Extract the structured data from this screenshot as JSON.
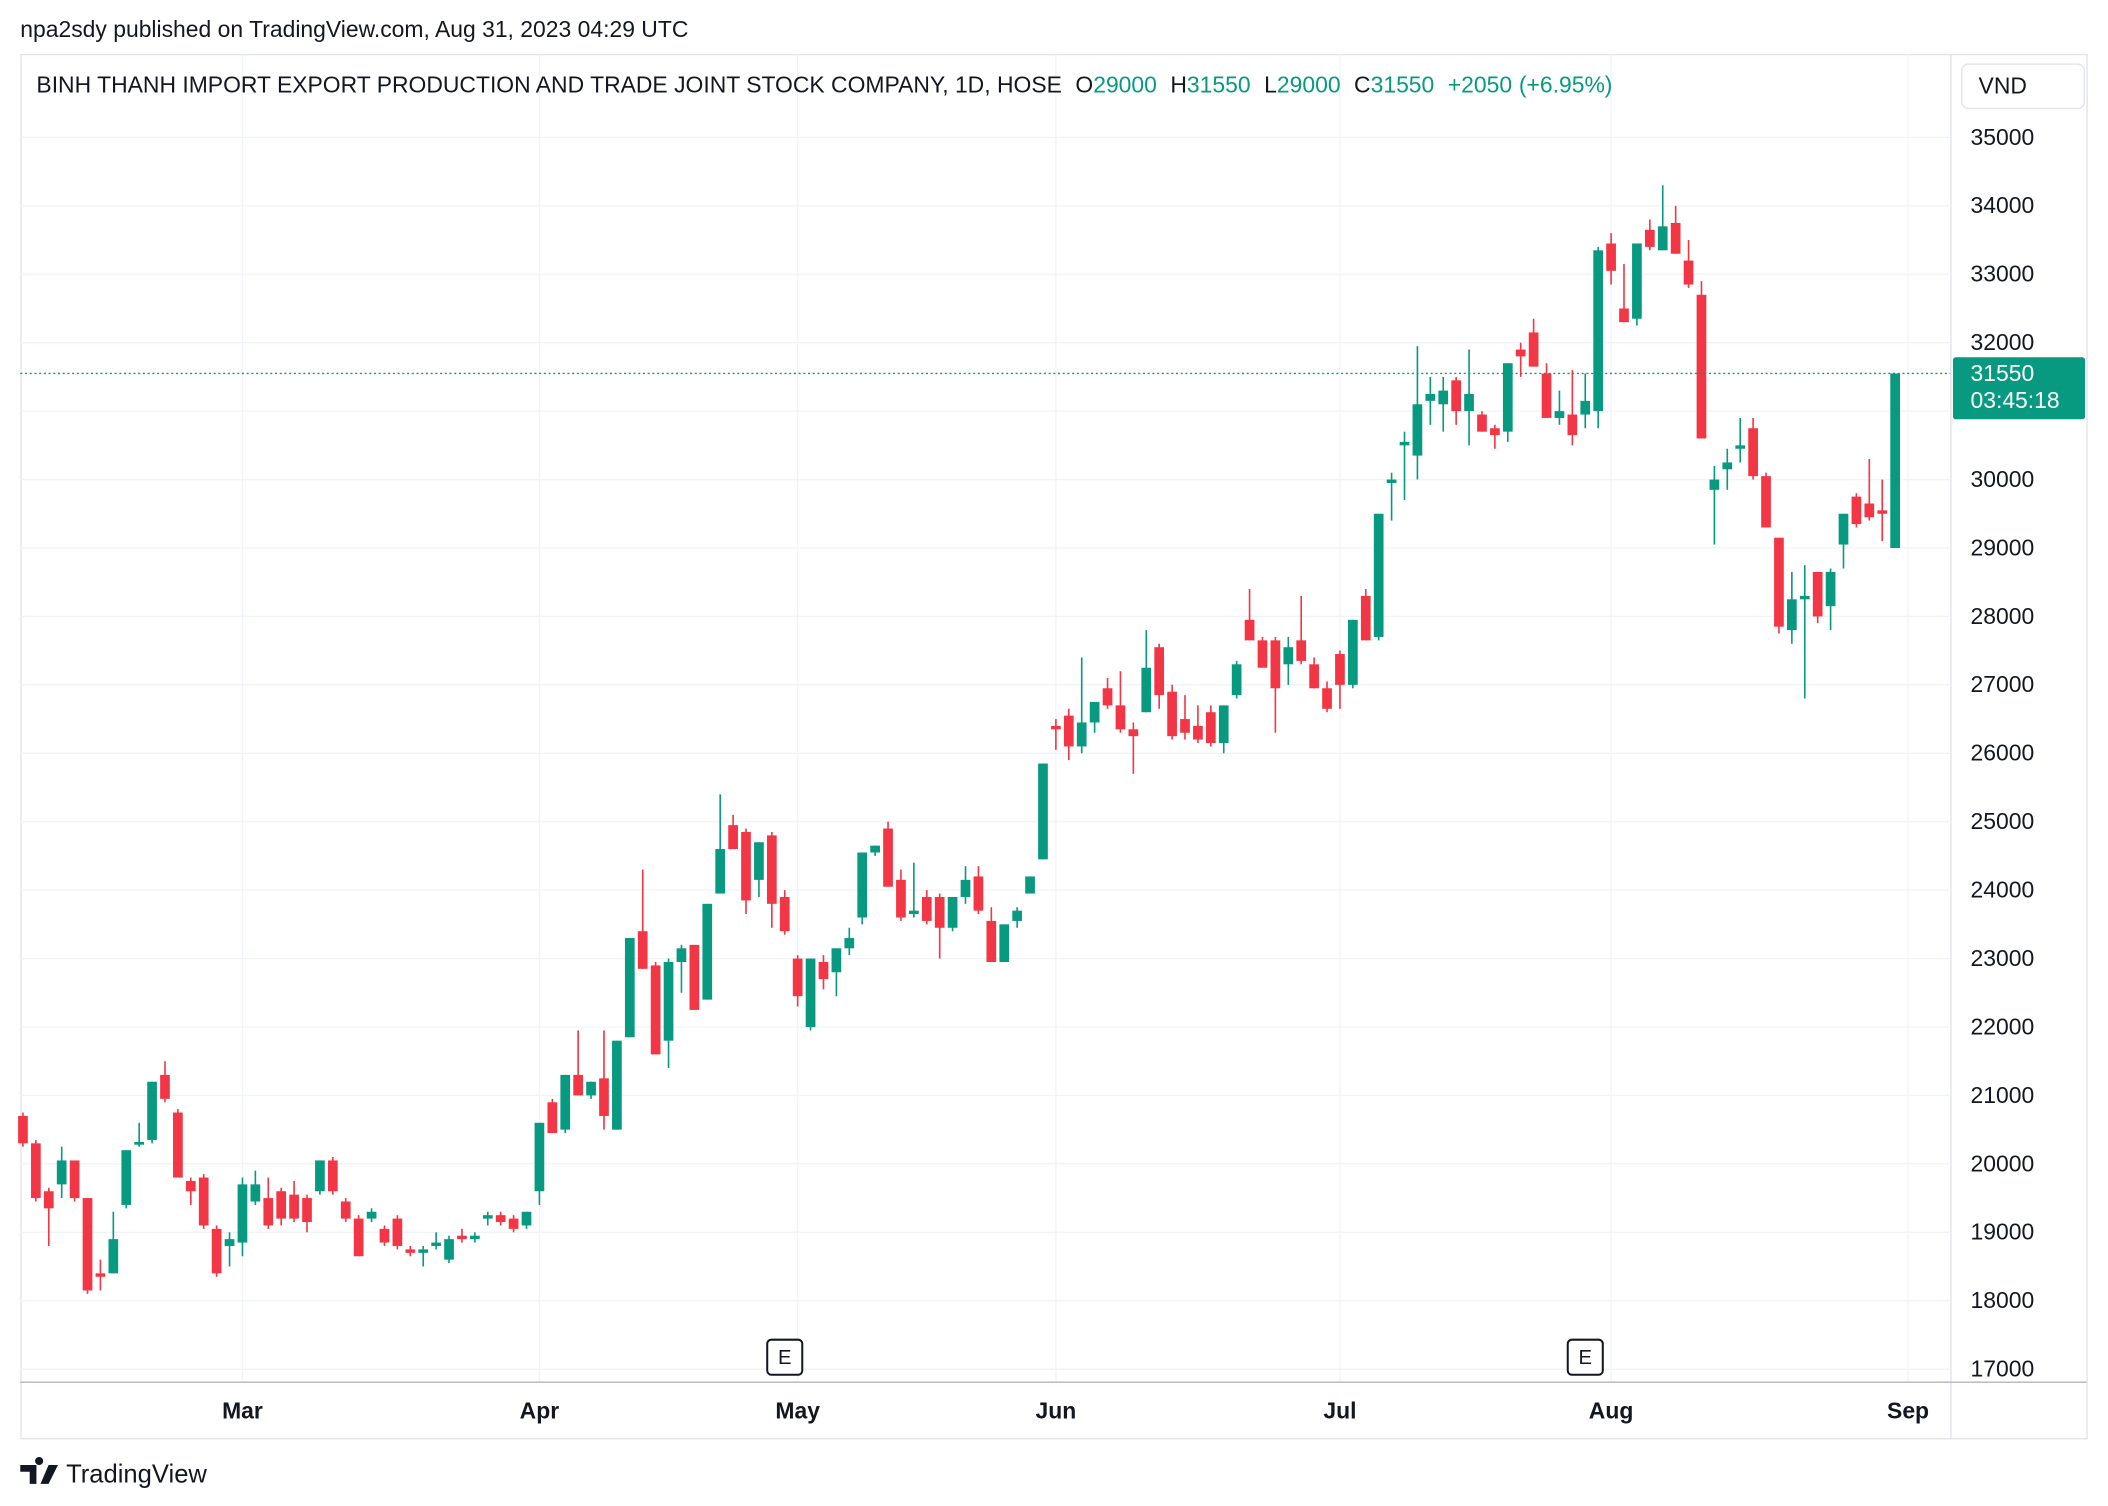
{
  "header": {
    "published": "npa2sdy published on TradingView.com, Aug 31, 2023 04:29 UTC"
  },
  "footer": {
    "brand": "TradingView"
  },
  "chart_data": {
    "type": "candlestick",
    "title": "BINH THANH IMPORT EXPORT PRODUCTION AND TRADE JOINT STOCK COMPANY, 1D, HOSE",
    "summary": {
      "open_label": "O",
      "open": 29000,
      "high_label": "H",
      "high": 31550,
      "low_label": "L",
      "low": 29000,
      "close_label": "C",
      "close": 31550,
      "change": {
        "value": 2050,
        "label": "+2050"
      },
      "change_pct": {
        "value": 6.95,
        "label": "(+6.95%)"
      }
    },
    "currency": "VND",
    "last_price": 31550,
    "countdown": "03:45:18",
    "up_color": "#089981",
    "down_color": "#f23645",
    "grid": true,
    "ylim": [
      16820,
      36220
    ],
    "yticks": [
      17000,
      18000,
      19000,
      20000,
      21000,
      22000,
      23000,
      24000,
      25000,
      26000,
      27000,
      28000,
      29000,
      30000,
      31000,
      32000,
      33000,
      34000,
      35000
    ],
    "earnings": [
      {
        "category_index": 59,
        "label": "E"
      },
      {
        "category_index": 121,
        "label": "E"
      }
    ],
    "categories": [
      null,
      null,
      null,
      null,
      null,
      null,
      null,
      null,
      null,
      null,
      null,
      null,
      null,
      null,
      null,
      null,
      null,
      "Mar",
      null,
      null,
      null,
      null,
      null,
      null,
      null,
      null,
      null,
      null,
      null,
      null,
      null,
      null,
      null,
      null,
      null,
      null,
      null,
      null,
      null,
      null,
      "Apr",
      null,
      null,
      null,
      null,
      null,
      null,
      null,
      null,
      null,
      null,
      null,
      null,
      null,
      null,
      null,
      null,
      null,
      null,
      null,
      "May",
      null,
      null,
      null,
      null,
      null,
      null,
      null,
      null,
      null,
      null,
      null,
      null,
      null,
      null,
      null,
      null,
      null,
      null,
      null,
      "Jun",
      null,
      null,
      null,
      null,
      null,
      null,
      null,
      null,
      null,
      null,
      null,
      null,
      null,
      null,
      null,
      null,
      null,
      null,
      null,
      null,
      null,
      "Jul",
      null,
      null,
      null,
      null,
      null,
      null,
      null,
      null,
      null,
      null,
      null,
      null,
      null,
      null,
      null,
      null,
      null,
      null,
      null,
      null,
      "Aug",
      null,
      null,
      null,
      null,
      null,
      null,
      null,
      null,
      null,
      null,
      null,
      null,
      null,
      null,
      null,
      null,
      null,
      null,
      null,
      null,
      null,
      null,
      "Sep"
    ],
    "open": [
      20700,
      20300,
      19600,
      19700,
      20050,
      19500,
      18400,
      18400,
      19400,
      20280,
      20350,
      21300,
      20750,
      19750,
      19800,
      19050,
      18800,
      18850,
      19450,
      19500,
      19600,
      19550,
      19500,
      19600,
      20050,
      19450,
      19200,
      19200,
      19050,
      19200,
      18750,
      18700,
      18800,
      18600,
      18950,
      18900,
      19200,
      19250,
      19200,
      19100,
      19600,
      20900,
      20500,
      21300,
      21000,
      21250,
      20500,
      21850,
      23400,
      22900,
      21800,
      22950,
      23200,
      22400,
      23950,
      24950,
      24850,
      24150,
      24800,
      23900,
      23000,
      22000,
      22950,
      22800,
      23150,
      23600,
      24550,
      24900,
      24150,
      23650,
      23900,
      23900,
      23450,
      23900,
      24200,
      23550,
      22950,
      23550,
      23950,
      24450,
      26400,
      26550,
      26100,
      26450,
      26950,
      26700,
      26350,
      26600,
      27550,
      26900,
      26500,
      26400,
      26600,
      26150,
      26850,
      27950,
      27650,
      27650,
      27300,
      27650,
      27300,
      26950,
      27450,
      27000,
      28300,
      27700,
      29950,
      30500,
      30350,
      31150,
      31100,
      31450,
      31000,
      30950,
      30750,
      30700,
      31900,
      32150,
      31550,
      30900,
      30950,
      30950,
      31000,
      33450,
      32500,
      32350,
      33650,
      33350,
      33750,
      33200,
      32700,
      29850,
      30150,
      30450,
      30750,
      30050,
      29150,
      27800,
      28250,
      28650,
      28150,
      29050,
      29750,
      29650,
      29550,
      29000,
      null
    ],
    "high": [
      20750,
      20350,
      19650,
      20250,
      20050,
      19500,
      18600,
      19300,
      20200,
      20600,
      21200,
      21500,
      20800,
      19800,
      19850,
      19100,
      19000,
      19800,
      19900,
      19800,
      19650,
      19750,
      19550,
      20050,
      20100,
      19500,
      19250,
      19350,
      19100,
      19250,
      18800,
      18800,
      19000,
      18950,
      19050,
      19000,
      19300,
      19300,
      19250,
      19300,
      20600,
      20950,
      21300,
      21950,
      21200,
      21950,
      21800,
      23300,
      24300,
      22950,
      23000,
      23200,
      23200,
      23800,
      25400,
      25100,
      24900,
      24700,
      24850,
      24000,
      23050,
      23000,
      23050,
      23150,
      23450,
      24550,
      24650,
      25000,
      24300,
      24400,
      24000,
      23950,
      23900,
      24350,
      24350,
      23750,
      23500,
      23750,
      24200,
      25850,
      26500,
      26650,
      27400,
      26750,
      27100,
      27200,
      26450,
      27800,
      27600,
      27000,
      26850,
      26700,
      26700,
      26700,
      27350,
      28400,
      27700,
      27700,
      27700,
      28300,
      27400,
      27050,
      27500,
      27950,
      28400,
      29500,
      30100,
      30700,
      31950,
      31500,
      31500,
      31500,
      31900,
      31000,
      30800,
      31700,
      32000,
      32350,
      31700,
      31300,
      31600,
      31550,
      33400,
      33600,
      33150,
      33450,
      33800,
      34300,
      34000,
      33500,
      32900,
      30200,
      30450,
      30900,
      30900,
      30100,
      29150,
      28650,
      28750,
      28650,
      28700,
      29500,
      29800,
      30300,
      30000,
      31550,
      null
    ],
    "low": [
      20250,
      19450,
      18800,
      19500,
      19450,
      18100,
      18150,
      18400,
      19350,
      20250,
      20300,
      20900,
      19800,
      19400,
      19050,
      18350,
      18500,
      18650,
      19400,
      19050,
      19100,
      19150,
      19000,
      19550,
      19550,
      19150,
      18650,
      19150,
      18800,
      18750,
      18650,
      18500,
      18750,
      18550,
      18850,
      18850,
      19100,
      19100,
      19000,
      19050,
      19400,
      20450,
      20450,
      21000,
      20950,
      20500,
      20500,
      21850,
      22850,
      21600,
      21400,
      22500,
      22250,
      22400,
      23950,
      24600,
      23650,
      23900,
      23450,
      23350,
      22300,
      21950,
      22550,
      22450,
      23050,
      23500,
      24500,
      24050,
      23550,
      23600,
      23500,
      23000,
      23400,
      23800,
      23650,
      22950,
      22950,
      23450,
      23950,
      24450,
      26050,
      25900,
      26000,
      26300,
      26650,
      26300,
      25700,
      26600,
      26650,
      26200,
      26200,
      26150,
      26100,
      26000,
      26800,
      27650,
      27250,
      26300,
      27000,
      27300,
      26950,
      26600,
      26650,
      26950,
      27650,
      27650,
      29400,
      29700,
      30000,
      30800,
      30700,
      30800,
      30500,
      30700,
      30450,
      30550,
      31500,
      31650,
      30900,
      30800,
      30500,
      30750,
      30750,
      32850,
      32300,
      32250,
      33350,
      33350,
      33300,
      32800,
      30600,
      29050,
      29850,
      30250,
      30000,
      29300,
      27750,
      27600,
      26800,
      27900,
      27800,
      28700,
      29300,
      29400,
      29100,
      29000,
      null
    ],
    "close": [
      20300,
      19500,
      19350,
      20050,
      19500,
      18150,
      18350,
      18900,
      20200,
      20320,
      21200,
      20950,
      19800,
      19600,
      19100,
      18400,
      18900,
      19700,
      19700,
      19100,
      19200,
      19200,
      19150,
      20050,
      19600,
      19200,
      18650,
      19300,
      18850,
      18800,
      18700,
      18750,
      18850,
      18900,
      18900,
      18950,
      19250,
      19150,
      19050,
      19300,
      20600,
      20450,
      21300,
      21000,
      21200,
      20700,
      21800,
      23300,
      22850,
      21600,
      22950,
      23150,
      22250,
      23800,
      24600,
      24600,
      23850,
      24700,
      23800,
      23400,
      22450,
      23000,
      22700,
      23150,
      23300,
      24550,
      24650,
      24050,
      23600,
      23700,
      23550,
      23450,
      23900,
      24150,
      23700,
      22950,
      23500,
      23700,
      24200,
      25850,
      26350,
      26100,
      26450,
      26750,
      26700,
      26350,
      26250,
      27250,
      26850,
      26250,
      26300,
      26200,
      26150,
      26700,
      27300,
      27650,
      27250,
      26950,
      27550,
      27350,
      26950,
      26650,
      27000,
      27950,
      27650,
      29500,
      30000,
      30550,
      31100,
      31250,
      31300,
      31000,
      31250,
      30700,
      30650,
      31700,
      31800,
      31650,
      30900,
      31000,
      30650,
      31150,
      33350,
      33050,
      32300,
      33450,
      33400,
      33700,
      33300,
      32850,
      30600,
      30000,
      30250,
      30500,
      30050,
      29300,
      27850,
      28250,
      28300,
      28000,
      28650,
      29500,
      29350,
      29450,
      29500,
      31550,
      null
    ]
  }
}
